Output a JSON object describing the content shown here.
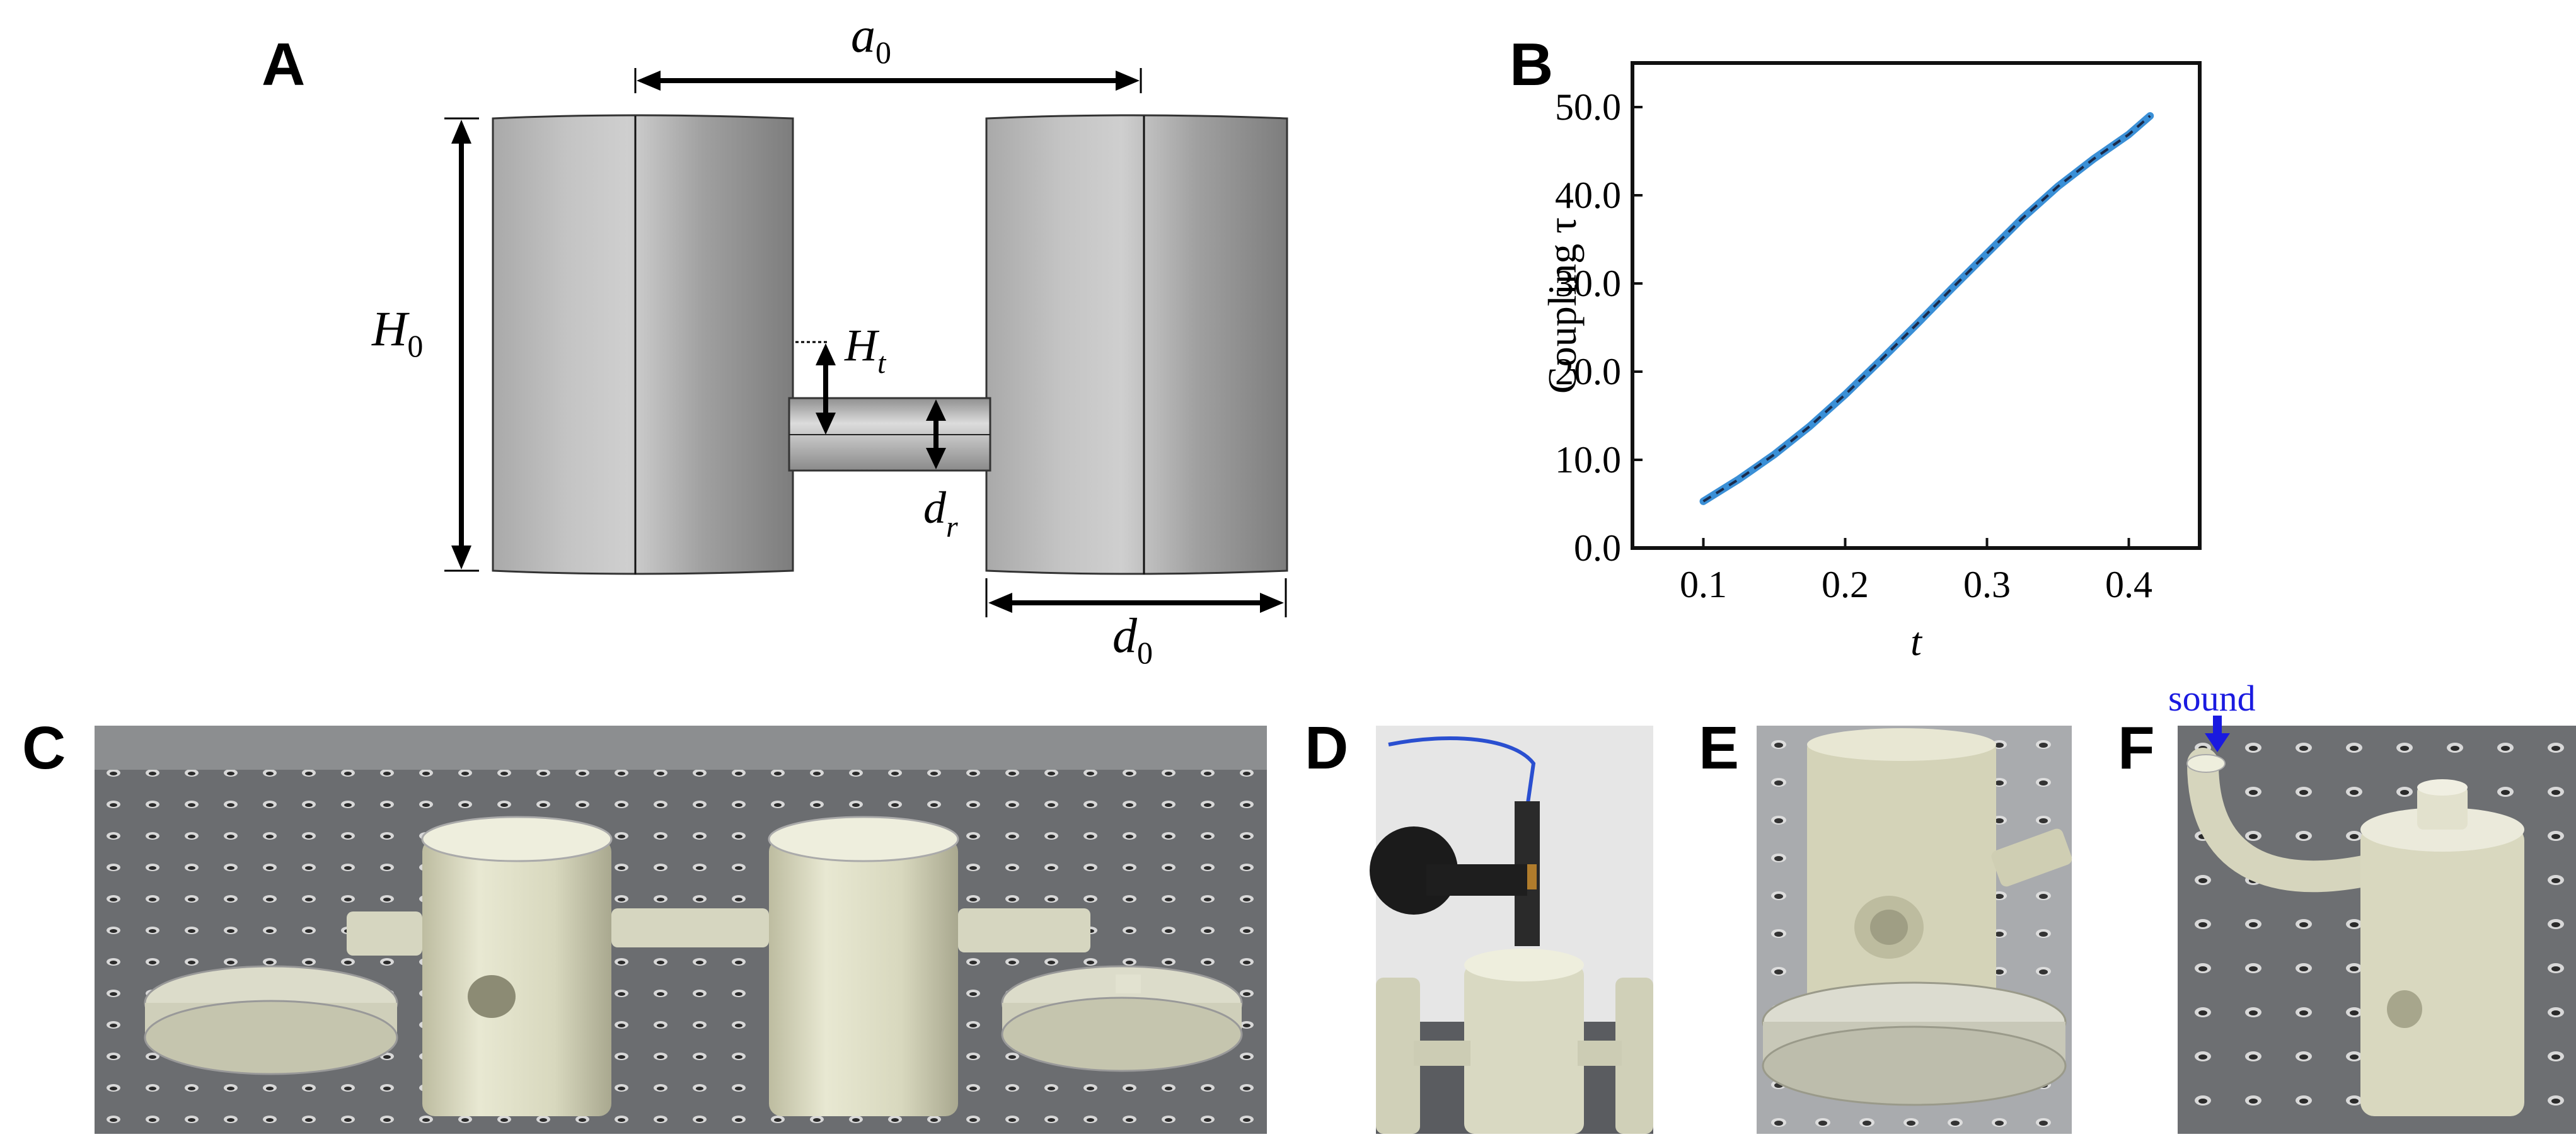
{
  "panels": {
    "A": "A",
    "B": "B",
    "C": "C",
    "D": "D",
    "E": "E",
    "F": "F"
  },
  "panel_a": {
    "labels": {
      "a0": "a",
      "a0_sub": "0",
      "H0": "H",
      "H0_sub": "0",
      "Ht": "H",
      "Ht_sub": "t",
      "dr": "d",
      "dr_sub": "r",
      "d0": "d",
      "d0_sub": "0"
    }
  },
  "panel_f": {
    "sound_label": "sound"
  },
  "chart_data": {
    "type": "line",
    "xlabel": "t",
    "ylabel": "Coupling τ",
    "xlim": [
      0.05,
      0.45
    ],
    "ylim": [
      0,
      55
    ],
    "xticks": [
      0.1,
      0.2,
      0.3,
      0.4
    ],
    "xtick_labels": [
      "0.1",
      "0.2",
      "0.3",
      "0.4"
    ],
    "yticks": [
      0,
      10,
      20,
      30,
      40,
      50
    ],
    "ytick_labels": [
      "0.0",
      "10.0",
      "20.0",
      "30.0",
      "40.0",
      "50.0"
    ],
    "grid": false,
    "series": [
      {
        "color": "#3a8fd6",
        "dash_color": "#1a2a4a",
        "x": [
          0.1,
          0.125,
          0.15,
          0.175,
          0.2,
          0.225,
          0.25,
          0.275,
          0.3,
          0.325,
          0.35,
          0.375,
          0.4,
          0.415
        ],
        "y": [
          5.3,
          7.8,
          10.6,
          13.8,
          17.4,
          21.3,
          25.3,
          29.4,
          33.4,
          37.4,
          41.0,
          44.1,
          46.9,
          49.0
        ]
      }
    ]
  }
}
